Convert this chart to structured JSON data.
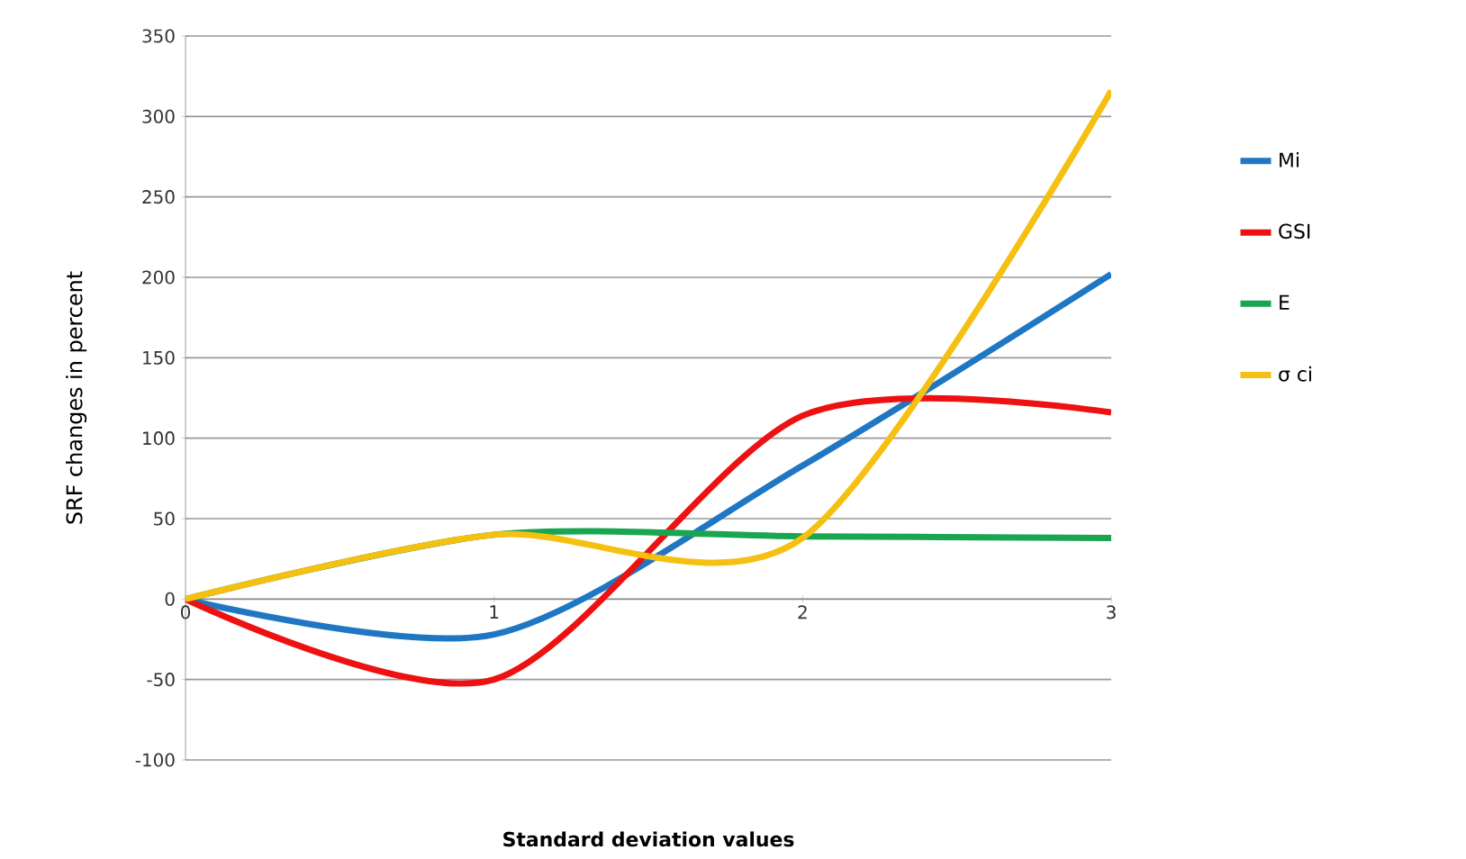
{
  "chart_data": {
    "type": "line",
    "xlabel": "Standard deviation values",
    "ylabel": "SRF changes in percent",
    "x": [
      0,
      1,
      2,
      3
    ],
    "series": [
      {
        "name": "Mi",
        "color": "#1f77c4",
        "values": [
          0,
          -22,
          83,
          202
        ]
      },
      {
        "name": "GSI",
        "color": "#ee1111",
        "values": [
          0,
          -50,
          114,
          116
        ]
      },
      {
        "name": "E",
        "color": "#1aa550",
        "values": [
          0,
          40,
          39,
          38
        ]
      },
      {
        "name": "σ ci",
        "color": "#f5c012",
        "values": [
          0,
          40,
          38,
          316
        ]
      }
    ],
    "xlim": [
      0,
      3
    ],
    "xticks": [
      0,
      1,
      2,
      3
    ],
    "ylim": [
      -100,
      350
    ],
    "yticks": [
      -100,
      -50,
      0,
      50,
      100,
      150,
      200,
      250,
      300,
      350
    ],
    "grid": "y",
    "legend": "right",
    "marker": "none",
    "line_style": "solid"
  }
}
